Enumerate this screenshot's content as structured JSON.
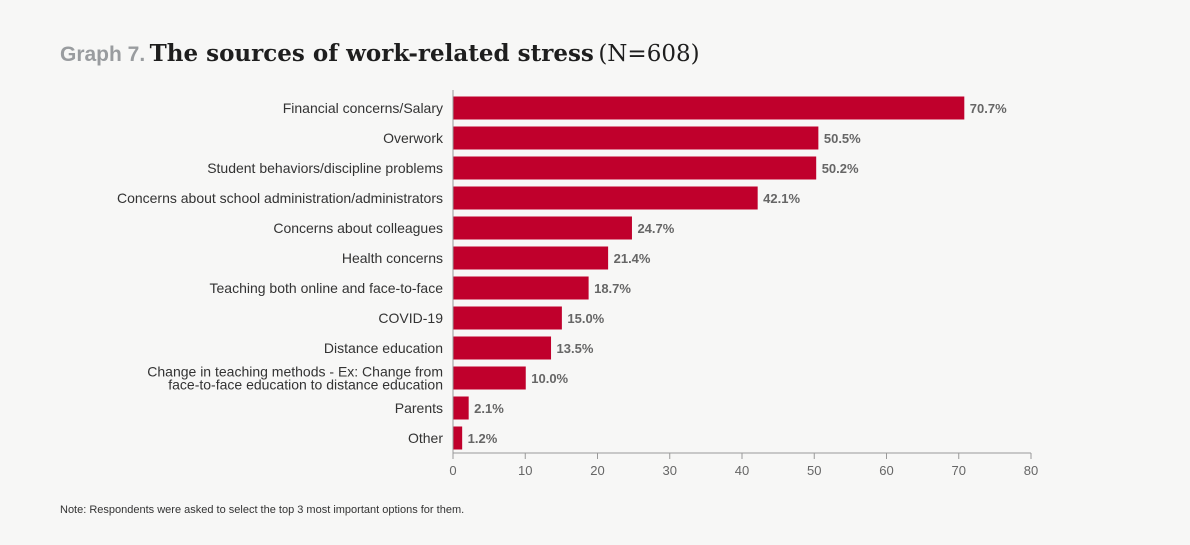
{
  "title": {
    "prefix": "Graph 7.",
    "main": "The sources of work-related stress",
    "sub": "(N=608)"
  },
  "note": "Note: Respondents were asked to select the top 3 most important options for them.",
  "colors": {
    "bar": "#c0002c",
    "axis": "#999999",
    "label": "#333333",
    "value": "#666666"
  },
  "chart_data": {
    "type": "bar",
    "orientation": "horizontal",
    "categories": [
      "Financial concerns/Salary",
      "Overwork",
      "Student behaviors/discipline problems",
      "Concerns about school administration/administrators",
      "Concerns about colleagues",
      "Health concerns",
      "Teaching both online and face-to-face",
      "COVID-19",
      "Distance education",
      "Change in teaching methods - Ex: Change from face-to-face education to distance education",
      "Parents",
      "Other"
    ],
    "category_lines": [
      [
        "Financial concerns/Salary"
      ],
      [
        "Overwork"
      ],
      [
        "Student behaviors/discipline problems"
      ],
      [
        "Concerns about school administration/administrators"
      ],
      [
        "Concerns about colleagues"
      ],
      [
        "Health concerns"
      ],
      [
        "Teaching both online and face-to-face"
      ],
      [
        "COVID-19"
      ],
      [
        "Distance education"
      ],
      [
        "Change in teaching methods - Ex: Change from",
        "face-to-face education to distance education"
      ],
      [
        "Parents"
      ],
      [
        "Other"
      ]
    ],
    "values": [
      70.7,
      50.5,
      50.2,
      42.1,
      24.7,
      21.4,
      18.7,
      15.0,
      13.5,
      10.0,
      2.1,
      1.2
    ],
    "value_labels": [
      "70.7%",
      "50.5%",
      "50.2%",
      "42.1%",
      "24.7%",
      "21.4%",
      "18.7%",
      "15.0%",
      "13.5%",
      "10.0%",
      "2.1%",
      "1.2%"
    ],
    "xlim": [
      0,
      80
    ],
    "xticks": [
      0,
      10,
      20,
      30,
      40,
      50,
      60,
      70,
      80
    ],
    "grid": false,
    "legend": "none"
  }
}
